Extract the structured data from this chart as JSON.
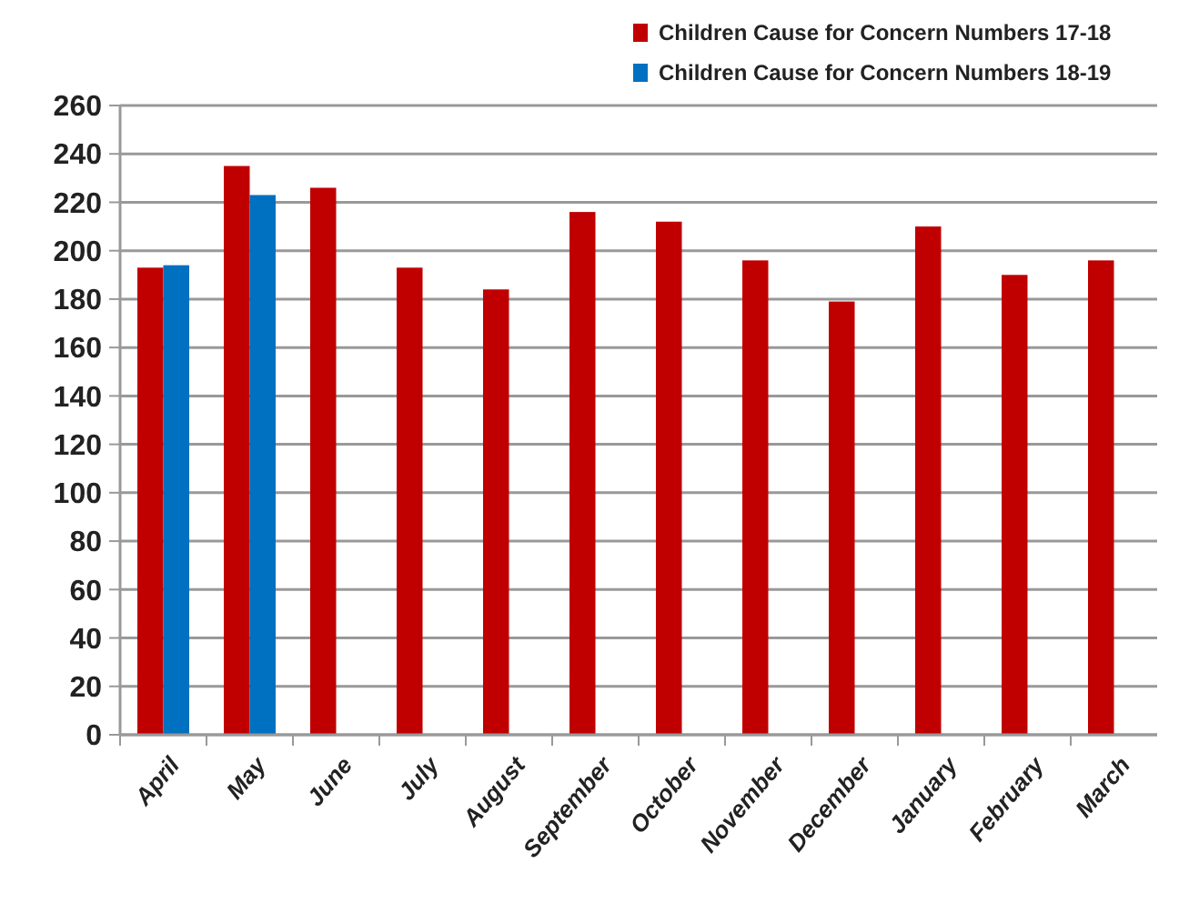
{
  "chart_data": {
    "type": "bar",
    "categories": [
      "April",
      "May",
      "June",
      "July",
      "August",
      "September",
      "October",
      "November",
      "December",
      "January",
      "February",
      "March"
    ],
    "series": [
      {
        "name": "Children Cause for Concern Numbers 17-18",
        "color": "#c00000",
        "values": [
          193,
          235,
          226,
          193,
          184,
          216,
          212,
          196,
          179,
          210,
          190,
          196
        ]
      },
      {
        "name": "Children Cause for Concern Numbers 18-19",
        "color": "#0070c0",
        "values": [
          194,
          223,
          null,
          null,
          null,
          null,
          null,
          null,
          null,
          null,
          null,
          null
        ]
      }
    ],
    "ylim": [
      0,
      260
    ],
    "yticks": [
      0,
      20,
      40,
      60,
      80,
      100,
      120,
      140,
      160,
      180,
      200,
      220,
      240,
      260
    ],
    "grid": "y",
    "legend": "top right"
  }
}
